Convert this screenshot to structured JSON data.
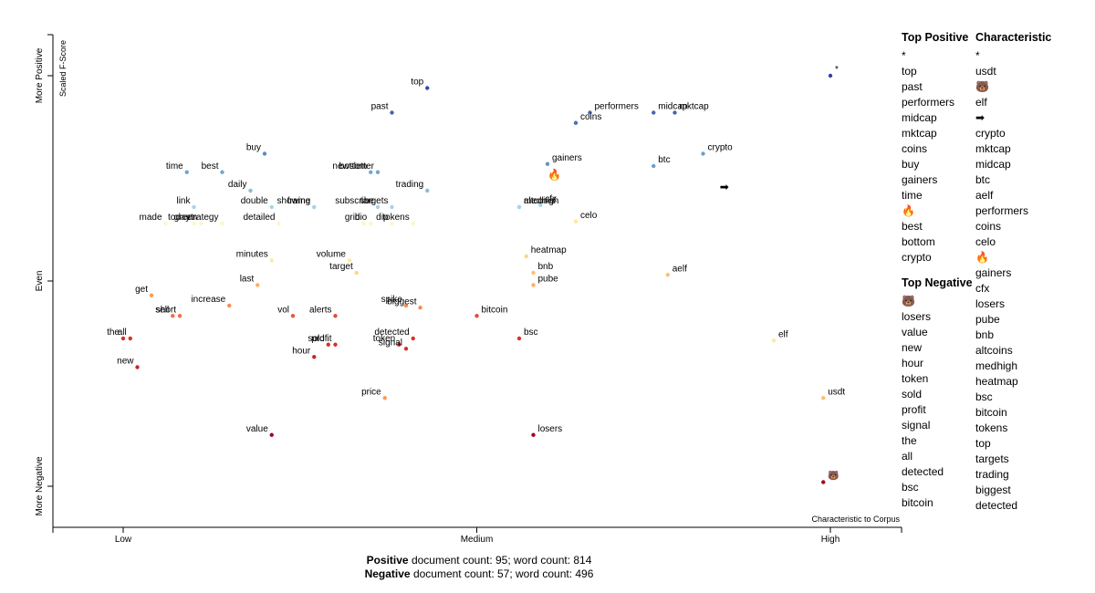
{
  "chart_data": {
    "type": "scatter",
    "xlabel": "Characteristic to Corpus",
    "ylabel": "Scaled F-Score",
    "x_ticks": [
      "Low",
      "Medium",
      "High"
    ],
    "y_ticks": [
      "More Negative",
      "Even",
      "More Positive"
    ],
    "x_range": [
      0,
      1
    ],
    "y_range": [
      0,
      1
    ],
    "grid": false,
    "legend": "none",
    "points": [
      {
        "term": "*",
        "x": 1.0,
        "y": 1.0,
        "color": "#3a3ea1"
      },
      {
        "term": "top",
        "x": 0.43,
        "y": 0.97,
        "color": "#3b47a8"
      },
      {
        "term": "past",
        "x": 0.38,
        "y": 0.91,
        "color": "#4463ad"
      },
      {
        "term": "performers",
        "x": 0.66,
        "y": 0.91,
        "color": "#4665ae"
      },
      {
        "term": "coins",
        "x": 0.64,
        "y": 0.885,
        "color": "#4a70b1"
      },
      {
        "term": "midcap",
        "x": 0.75,
        "y": 0.91,
        "color": "#4665ae"
      },
      {
        "term": "mktcap",
        "x": 0.78,
        "y": 0.91,
        "color": "#4665ae"
      },
      {
        "term": "buy",
        "x": 0.2,
        "y": 0.81,
        "color": "#5a8cc0"
      },
      {
        "term": "crypto",
        "x": 0.82,
        "y": 0.81,
        "color": "#6a9fcb"
      },
      {
        "term": "gainers",
        "x": 0.6,
        "y": 0.785,
        "color": "#6293c6"
      },
      {
        "term": "btc",
        "x": 0.75,
        "y": 0.78,
        "color": "#6a9fcb"
      },
      {
        "term": "time",
        "x": 0.09,
        "y": 0.765,
        "color": "#6fa7d0"
      },
      {
        "term": "best",
        "x": 0.14,
        "y": 0.765,
        "color": "#6fa7d0"
      },
      {
        "term": "bottom",
        "x": 0.35,
        "y": 0.765,
        "color": "#6fa7d0"
      },
      {
        "term": "newsletter",
        "x": 0.36,
        "y": 0.765,
        "color": "#6fa7d0"
      },
      {
        "term": "daily",
        "x": 0.18,
        "y": 0.72,
        "color": "#84bde0"
      },
      {
        "term": "frame",
        "x": 0.27,
        "y": 0.68,
        "color": "#a2d4ec"
      },
      {
        "term": "subscribe",
        "x": 0.36,
        "y": 0.68,
        "color": "#a2d4ec"
      },
      {
        "term": "targets",
        "x": 0.38,
        "y": 0.68,
        "color": "#a2d4ec"
      },
      {
        "term": "trading",
        "x": 0.43,
        "y": 0.72,
        "color": "#84bde0"
      },
      {
        "term": "link",
        "x": 0.1,
        "y": 0.68,
        "color": "#a2d4ec"
      },
      {
        "term": "double",
        "x": 0.21,
        "y": 0.68,
        "color": "#a2d4ec"
      },
      {
        "term": "showing",
        "x": 0.27,
        "y": 0.68,
        "color": "#a2d4ec"
      },
      {
        "term": "altcoins",
        "x": 0.56,
        "y": 0.68,
        "color": "#a2d4ec"
      },
      {
        "term": "cfx",
        "x": 0.59,
        "y": 0.685,
        "color": "#a2d4ec"
      },
      {
        "term": "medhigh",
        "x": 0.56,
        "y": 0.68,
        "color": "#a2d4ec"
      },
      {
        "term": "made",
        "x": 0.06,
        "y": 0.64,
        "color": "#f6f9c8"
      },
      {
        "term": "green",
        "x": 0.11,
        "y": 0.64,
        "color": "#f6f9c8"
      },
      {
        "term": "strategy",
        "x": 0.14,
        "y": 0.64,
        "color": "#f6f9c8"
      },
      {
        "term": "today",
        "x": 0.1,
        "y": 0.64,
        "color": "#f6f9c8"
      },
      {
        "term": "detailed",
        "x": 0.22,
        "y": 0.64,
        "color": "#f6f9c8"
      },
      {
        "term": "grid",
        "x": 0.34,
        "y": 0.64,
        "color": "#f6f9c8"
      },
      {
        "term": "bio",
        "x": 0.35,
        "y": 0.64,
        "color": "#f6f9c8"
      },
      {
        "term": "dip",
        "x": 0.38,
        "y": 0.64,
        "color": "#f6f9c8"
      },
      {
        "term": "tokens",
        "x": 0.41,
        "y": 0.64,
        "color": "#f6f9c8"
      },
      {
        "term": "celo",
        "x": 0.64,
        "y": 0.645,
        "color": "#fee99b"
      },
      {
        "term": "heatmap",
        "x": 0.57,
        "y": 0.56,
        "color": "#fed584"
      },
      {
        "term": "minutes",
        "x": 0.21,
        "y": 0.55,
        "color": "#fee99b"
      },
      {
        "term": "volume",
        "x": 0.32,
        "y": 0.55,
        "color": "#fee99b"
      },
      {
        "term": "target",
        "x": 0.33,
        "y": 0.52,
        "color": "#fed584"
      },
      {
        "term": "bnb",
        "x": 0.58,
        "y": 0.52,
        "color": "#fdc06f"
      },
      {
        "term": "aelf",
        "x": 0.77,
        "y": 0.515,
        "color": "#fdc06f"
      },
      {
        "term": "pube",
        "x": 0.58,
        "y": 0.49,
        "color": "#fdae61"
      },
      {
        "term": "last",
        "x": 0.19,
        "y": 0.49,
        "color": "#fdae61"
      },
      {
        "term": "get",
        "x": 0.04,
        "y": 0.465,
        "color": "#fb9b58"
      },
      {
        "term": "sell",
        "x": 0.07,
        "y": 0.415,
        "color": "#f46d43"
      },
      {
        "term": "increase",
        "x": 0.15,
        "y": 0.44,
        "color": "#f88950"
      },
      {
        "term": "short",
        "x": 0.08,
        "y": 0.415,
        "color": "#f46d43"
      },
      {
        "term": "spike",
        "x": 0.4,
        "y": 0.44,
        "color": "#f88950"
      },
      {
        "term": "biggest",
        "x": 0.42,
        "y": 0.435,
        "color": "#f88950"
      },
      {
        "term": "vol",
        "x": 0.24,
        "y": 0.415,
        "color": "#e8553a"
      },
      {
        "term": "alerts",
        "x": 0.3,
        "y": 0.415,
        "color": "#e34a33"
      },
      {
        "term": "bitcoin",
        "x": 0.5,
        "y": 0.415,
        "color": "#e34a33"
      },
      {
        "term": "the",
        "x": 0.0,
        "y": 0.36,
        "color": "#d7302a"
      },
      {
        "term": "all",
        "x": 0.01,
        "y": 0.36,
        "color": "#d7302a"
      },
      {
        "term": "bsc",
        "x": 0.56,
        "y": 0.36,
        "color": "#d7302a"
      },
      {
        "term": "sold",
        "x": 0.29,
        "y": 0.345,
        "color": "#d7302a"
      },
      {
        "term": "profit",
        "x": 0.3,
        "y": 0.345,
        "color": "#d7302a"
      },
      {
        "term": "token",
        "x": 0.39,
        "y": 0.345,
        "color": "#d7302a"
      },
      {
        "term": "detected",
        "x": 0.41,
        "y": 0.36,
        "color": "#d7302a"
      },
      {
        "term": "signal",
        "x": 0.4,
        "y": 0.335,
        "color": "#d7302a"
      },
      {
        "term": "hour",
        "x": 0.27,
        "y": 0.315,
        "color": "#c72628"
      },
      {
        "term": "new",
        "x": 0.02,
        "y": 0.29,
        "color": "#c72628"
      },
      {
        "term": "elf",
        "x": 0.92,
        "y": 0.355,
        "color": "#fee99b"
      },
      {
        "term": "price",
        "x": 0.37,
        "y": 0.215,
        "color": "#fb9b58"
      },
      {
        "term": "usdt",
        "x": 0.99,
        "y": 0.215,
        "color": "#fdc06f"
      },
      {
        "term": "value",
        "x": 0.21,
        "y": 0.125,
        "color": "#a50026"
      },
      {
        "term": "losers",
        "x": 0.58,
        "y": 0.125,
        "color": "#a50026"
      },
      {
        "term": "🐻",
        "x": 0.99,
        "y": 0.01,
        "color": "#a50026"
      }
    ],
    "emoji_marks": [
      {
        "glyph": "🔥",
        "x": 0.61,
        "y": 0.75
      },
      {
        "glyph": "➡",
        "x": 0.85,
        "y": 0.72
      }
    ]
  },
  "side_panel": {
    "top_positive": {
      "title": "Top Positive",
      "terms": [
        "*",
        "top",
        "past",
        "performers",
        "midcap",
        "mktcap",
        "coins",
        "buy",
        "gainers",
        "time",
        "🔥",
        "best",
        "bottom",
        "crypto"
      ]
    },
    "top_negative": {
      "title": "Top Negative",
      "terms": [
        "🐻",
        "losers",
        "value",
        "new",
        "hour",
        "token",
        "sold",
        "profit",
        "signal",
        "the",
        "all",
        "detected",
        "bsc",
        "bitcoin"
      ]
    },
    "characteristic": {
      "title": "Characteristic",
      "terms": [
        "*",
        "usdt",
        "🐻",
        "elf",
        "➡",
        "crypto",
        "mktcap",
        "midcap",
        "btc",
        "aelf",
        "performers",
        "coins",
        "celo",
        "🔥",
        "gainers",
        "cfx",
        "losers",
        "pube",
        "bnb",
        "altcoins",
        "medhigh",
        "heatmap",
        "bsc",
        "bitcoin",
        "tokens",
        "top",
        "targets",
        "trading",
        "biggest",
        "detected"
      ]
    }
  },
  "footer": {
    "positive_label": "Positive",
    "positive_text": " document count: 95; word count: 814",
    "negative_label": "Negative",
    "negative_text": " document count: 57; word count: 496"
  }
}
